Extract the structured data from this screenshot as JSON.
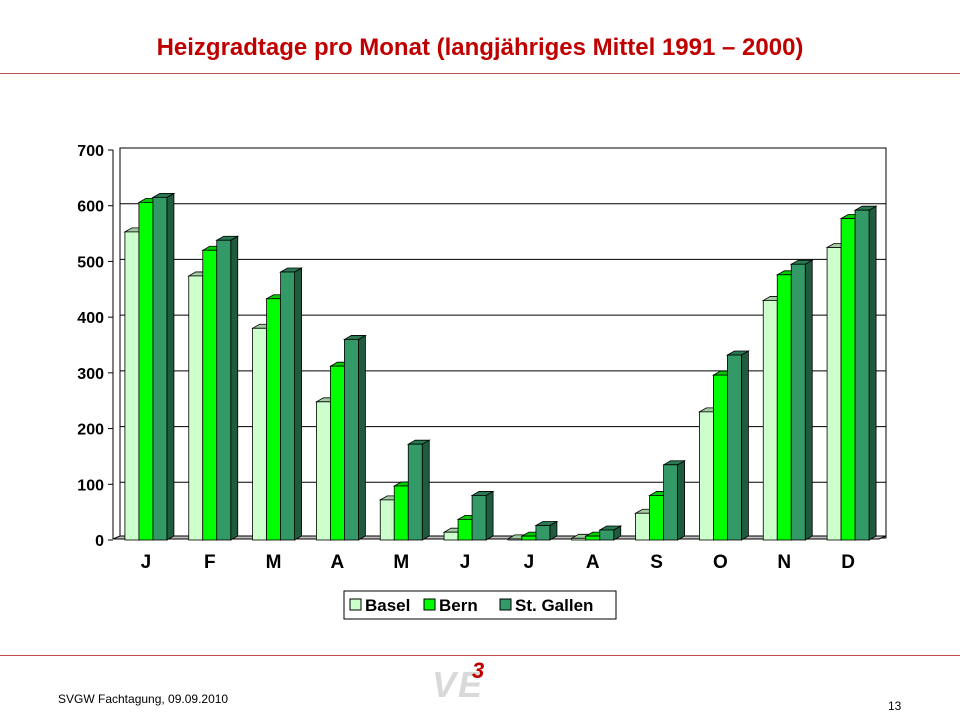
{
  "slide": {
    "title": "Heizgradtage pro Monat (langjähriges Mittel 1991 – 2000)",
    "footer_left": "SVGW Fachtagung, 09.09.2010",
    "page_number": "13",
    "logo_letters": "VE",
    "logo_superscript": "3"
  },
  "colors": {
    "title": "#c00000",
    "rule": "#c0504d",
    "basel": "#ccffcc",
    "bern": "#00ff00",
    "st_gallen": "#339966"
  },
  "chart_data": {
    "type": "bar",
    "title": "",
    "xlabel": "",
    "ylabel": "",
    "categories": [
      "J",
      "F",
      "M",
      "A",
      "M",
      "J",
      "J",
      "A",
      "S",
      "O",
      "N",
      "D"
    ],
    "series": [
      {
        "name": "Basel",
        "color": "#ccffcc",
        "values": [
          553,
          474,
          380,
          248,
          72,
          14,
          2,
          3,
          48,
          230,
          430,
          525
        ]
      },
      {
        "name": "Bern",
        "color": "#00ff00",
        "values": [
          606,
          520,
          433,
          312,
          97,
          37,
          7,
          7,
          80,
          296,
          476,
          577
        ]
      },
      {
        "name": "St. Gallen",
        "color": "#339966",
        "values": [
          615,
          538,
          481,
          360,
          172,
          80,
          26,
          18,
          135,
          332,
          495,
          592
        ]
      }
    ],
    "ylim": [
      0,
      700
    ],
    "yticks": [
      0,
      100,
      200,
      300,
      400,
      500,
      600,
      700
    ],
    "grid": true,
    "legend_position": "bottom-center",
    "three_d": true
  }
}
